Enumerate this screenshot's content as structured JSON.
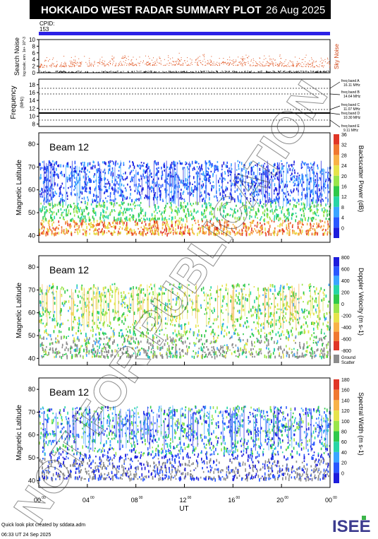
{
  "title": {
    "main": "HOKKAIDO WEST RADAR SUMMARY PLOT",
    "date": "26 Aug 2025"
  },
  "cpid": {
    "label": "CPID:",
    "value": "153"
  },
  "noise_panel": {
    "ylabel": "Search Noise",
    "ylabel_sub": "log scale; ann. 1e+ 10^-3",
    "yticks": [
      "0",
      "2",
      "4",
      "6",
      "8",
      "10"
    ],
    "right_label": "Sky Noise"
  },
  "frequency_panel": {
    "ylabel": "Frequency",
    "ylabel_unit": "(MHz)",
    "yticks": [
      "8",
      "10",
      "12",
      "14",
      "16",
      "18"
    ],
    "band_labels": [
      "freq band A",
      "16.11 MHz",
      "freq band B",
      "14.64 MHz",
      "freq band C",
      "11.07 MHz",
      "freq band D",
      "10.30 MHz",
      "freq band E",
      "9.11 MHz"
    ]
  },
  "panels": [
    {
      "beam": "Beam 12",
      "ylabel": "Magnetic Latitude",
      "yticks": [
        "40",
        "50",
        "60",
        "70",
        "80"
      ],
      "colorbar_label": "Backscatter Power (dB)",
      "colorbar_ticks": [
        "0",
        "4",
        "8",
        "12",
        "16",
        "20",
        "24",
        "28",
        "32",
        "36"
      ],
      "colors": [
        "#1d1ddc",
        "#2a58ff",
        "#3aa5ff",
        "#27d5a5",
        "#2fc94a",
        "#99e54b",
        "#e5e34a",
        "#f8b247",
        "#f07830",
        "#e03626"
      ]
    },
    {
      "beam": "Beam 12",
      "ylabel": "Magnetic Latitude",
      "yticks": [
        "40",
        "50",
        "60",
        "70",
        "80"
      ],
      "colorbar_label": "Doppler Velocity (m s-1)",
      "colorbar_ticks": [
        "800",
        "600",
        "400",
        "200",
        "0",
        "-200",
        "-400",
        "-600",
        "-800"
      ],
      "ground_scatter_label": [
        "Ground",
        "Scatter"
      ],
      "colors": [
        "#1d1ddc",
        "#2a58ff",
        "#3aa5ff",
        "#27d5a5",
        "#2fc94a",
        "#99e54b",
        "#e5e34a",
        "#f8b247",
        "#f07830",
        "#e03626"
      ]
    },
    {
      "beam": "Beam 12",
      "ylabel": "Magnetic Latitude",
      "yticks": [
        "40",
        "50",
        "60",
        "70",
        "80"
      ],
      "colorbar_label": "Spectral Width (m s-1)",
      "colorbar_ticks": [
        "0",
        "20",
        "40",
        "60",
        "80",
        "100",
        "120",
        "140",
        "160",
        "180"
      ],
      "colors": [
        "#1d1ddc",
        "#2a58ff",
        "#3aa5ff",
        "#27d5a5",
        "#2fc94a",
        "#99e54b",
        "#e5e34a",
        "#f8b247",
        "#f07830",
        "#e03626"
      ]
    }
  ],
  "xaxis": {
    "label": "UT",
    "ticks": [
      "00",
      "04",
      "08",
      "12",
      "16",
      "20",
      "00"
    ],
    "tick_sup": "00"
  },
  "watermark": "NOT FOR PUBLICATION",
  "footer": {
    "line1": "Quick look plot created by sddata.adm",
    "line2": "06:33 UT 24 Sep 2025"
  },
  "logo": "ISEE",
  "chart_data": {
    "type": "heatmap",
    "title": "HOKKAIDO WEST RADAR SUMMARY PLOT",
    "x_range_hours": [
      0,
      24
    ],
    "y_range_mlat": [
      37,
      85
    ],
    "series": [
      {
        "name": "Backscatter Power (dB)",
        "range": [
          0,
          36
        ]
      },
      {
        "name": "Doppler Velocity (m s-1)",
        "range": [
          -800,
          800
        ]
      },
      {
        "name": "Spectral Width (m s-1)",
        "range": [
          0,
          180
        ]
      }
    ]
  }
}
